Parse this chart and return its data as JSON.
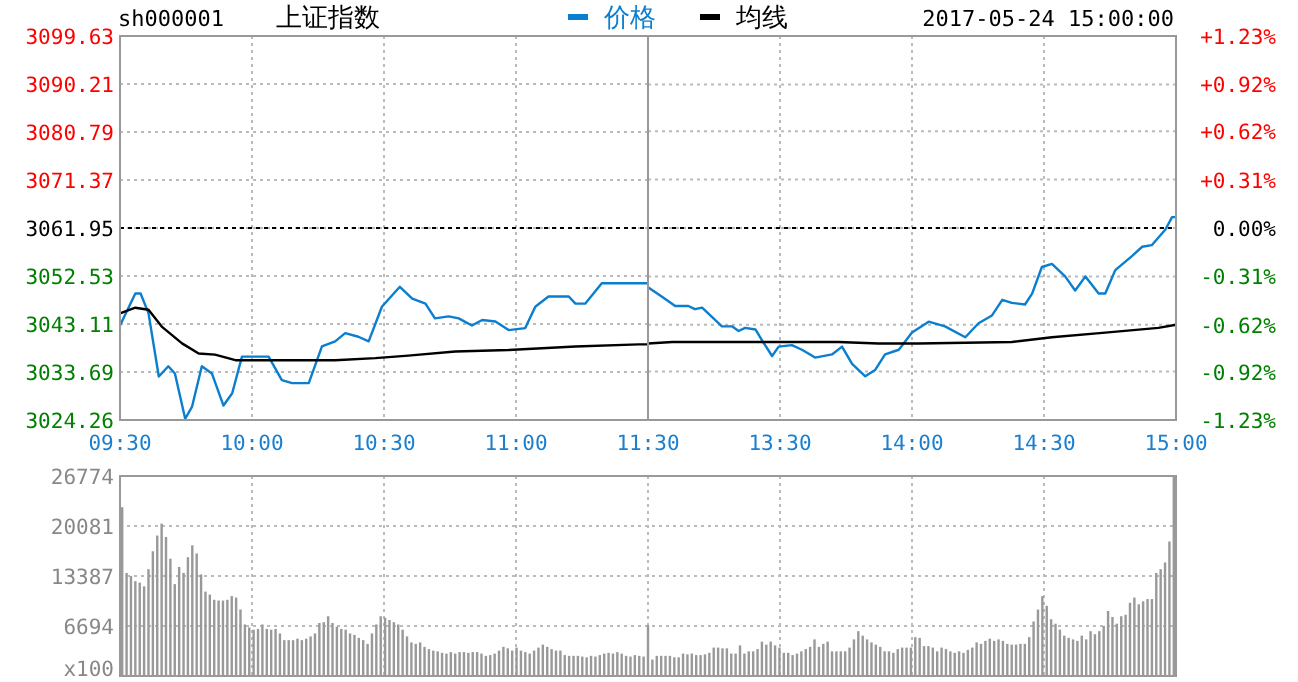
{
  "chart_data": [
    {
      "type": "line",
      "title": "上证指数",
      "annotations": [
        "sh000001"
      ],
      "legend": "top right",
      "grid": true,
      "xlim": [
        9.5,
        11.5
      ],
      "xticks": [
        {
          "value": 9.5,
          "label": "09:30"
        },
        {
          "value": 10,
          "label": "10:00"
        },
        {
          "value": 10.5,
          "label": "10:30"
        },
        {
          "value": 11,
          "label": "11:00"
        },
        {
          "value": 11.5,
          "label": "11:30"
        }
      ],
      "ylim": [
        3024.26,
        3099.63
      ],
      "yticks": [
        3024.26,
        3033.69,
        3043.11,
        3052.53,
        3061.95,
        3071.37,
        3080.79,
        3090.21,
        3099.63
      ],
      "ref_lines": [
        {
          "axis": "y",
          "value": 3061.95,
          "line_style": "dotted",
          "color": "#000000"
        }
      ],
      "series": [
        {
          "name": "价格",
          "color": "#0a7ecf",
          "x": [
            9.5,
            9.558,
            9.578,
            9.608,
            9.647,
            9.683,
            9.708,
            9.747,
            9.773,
            9.81,
            9.848,
            9.892,
            9.925,
            9.962,
            10,
            10.063,
            10.113,
            10.152,
            10.215,
            10.265,
            10.315,
            10.353,
            10.403,
            10.442,
            10.492,
            10.56,
            10.607,
            10.657,
            10.693,
            10.745,
            10.783,
            10.833,
            10.872,
            10.922,
            10.972,
            11.035,
            11.073,
            11.123,
            11.2,
            11.225,
            11.262,
            11.325,
            11.402,
            11.465,
            11.5
          ],
          "values": [
            3042.8,
            3049.1,
            3049.1,
            3045.2,
            3032.8,
            3034.8,
            3033.4,
            3024.5,
            3026.9,
            3034.8,
            3033.4,
            3027.1,
            3029.5,
            3036.7,
            3036.7,
            3036.7,
            3032.1,
            3031.5,
            3031.5,
            3038.7,
            3039.7,
            3041.3,
            3040.6,
            3039.7,
            3046.5,
            3050.4,
            3048.1,
            3047.1,
            3044.2,
            3044.6,
            3044.2,
            3042.8,
            3043.9,
            3043.6,
            3041.9,
            3042.3,
            3046.5,
            3048.5,
            3048.5,
            3047.1,
            3047.1,
            3051.1,
            3051.1,
            3051.1,
            3051.1
          ]
        },
        {
          "name": "均线",
          "color": "#000000",
          "x": [
            9.5,
            9.558,
            9.608,
            9.658,
            9.735,
            9.798,
            9.86,
            9.937,
            10.088,
            10.315,
            10.467,
            10.592,
            10.77,
            10.972,
            11.225,
            11.465,
            11.5
          ],
          "values": [
            3045.2,
            3046.3,
            3045.9,
            3042.6,
            3039.3,
            3037.3,
            3037.1,
            3036.0,
            3036.0,
            3036.0,
            3036.4,
            3036.9,
            3037.7,
            3038.0,
            3038.7,
            3039.1,
            3039.1
          ]
        }
      ]
    },
    {
      "type": "line",
      "annotations": [
        "2017-05-24 15:00:00"
      ],
      "grid": true,
      "xlim": [
        13,
        15
      ],
      "xticks": [
        {
          "value": 13.5,
          "label": "13:30"
        },
        {
          "value": 14,
          "label": "14:00"
        },
        {
          "value": 14.5,
          "label": "14:30"
        },
        {
          "value": 15,
          "label": "15:00"
        }
      ],
      "y2lim": [
        -1.23,
        1.23
      ],
      "y2ticks": [
        {
          "value": -1.23,
          "label": "-1.23%"
        },
        {
          "value": -0.92,
          "label": "-0.92%"
        },
        {
          "value": -0.62,
          "label": "-0.62%"
        },
        {
          "value": -0.31,
          "label": "-0.31%"
        },
        {
          "value": 0,
          "label": "0.00%"
        },
        {
          "value": 0.31,
          "label": "+0.31%"
        },
        {
          "value": 0.62,
          "label": "+0.62%"
        },
        {
          "value": 0.92,
          "label": "+0.92%"
        },
        {
          "value": 1.23,
          "label": "+1.23%"
        }
      ],
      "ref_lines": [
        {
          "axis": "y2",
          "value": 0,
          "line_style": "dotted",
          "color": "#000000"
        }
      ],
      "series": [
        {
          "axis": "y2",
          "color": "#0a7ecf",
          "x": [
            13,
            13.053,
            13.103,
            13.153,
            13.178,
            13.205,
            13.242,
            13.28,
            13.318,
            13.343,
            13.368,
            13.407,
            13.432,
            13.47,
            13.495,
            13.545,
            13.583,
            13.633,
            13.697,
            13.735,
            13.773,
            13.823,
            13.86,
            13.898,
            13.95,
            14,
            14.063,
            14.125,
            14.202,
            14.252,
            14.303,
            14.342,
            14.378,
            14.428,
            14.455,
            14.492,
            14.53,
            14.58,
            14.618,
            14.657,
            14.707,
            14.732,
            14.77,
            14.833,
            14.872,
            14.908,
            14.96,
            14.985,
            15
          ],
          "values": [
            -0.38,
            -0.44,
            -0.5,
            -0.5,
            -0.52,
            -0.51,
            -0.57,
            -0.63,
            -0.63,
            -0.66,
            -0.64,
            -0.65,
            -0.72,
            -0.82,
            -0.76,
            -0.75,
            -0.78,
            -0.83,
            -0.81,
            -0.76,
            -0.87,
            -0.95,
            -0.91,
            -0.81,
            -0.78,
            -0.67,
            -0.6,
            -0.63,
            -0.7,
            -0.61,
            -0.56,
            -0.46,
            -0.48,
            -0.49,
            -0.42,
            -0.25,
            -0.23,
            -0.31,
            -0.4,
            -0.31,
            -0.42,
            -0.42,
            -0.27,
            -0.18,
            -0.12,
            -0.11,
            -0.01,
            0.07,
            0.07
          ]
        },
        {
          "axis": "y2",
          "color": "#000000",
          "x": [
            13,
            13.092,
            13.722,
            13.873,
            14.025,
            14.378,
            14.53,
            14.732,
            14.933,
            15
          ],
          "values": [
            -0.74,
            -0.73,
            -0.73,
            -0.74,
            -0.74,
            -0.73,
            -0.7,
            -0.67,
            -0.64,
            -0.62
          ]
        }
      ]
    },
    {
      "type": "bar",
      "color": "#999999",
      "grid": true,
      "categories": [
        null,
        null,
        null,
        null,
        null,
        null,
        null,
        null,
        null,
        null,
        null,
        null,
        null,
        null,
        null,
        null,
        null,
        null,
        null,
        null,
        null,
        null,
        null,
        null,
        null,
        null,
        null,
        null,
        null,
        null,
        null,
        null,
        null,
        null,
        null,
        null,
        null,
        null,
        null,
        null,
        null,
        null,
        null,
        null,
        null,
        null,
        null,
        null,
        null,
        null,
        null,
        null,
        null,
        null,
        null,
        null,
        null,
        null,
        null,
        null,
        null,
        null,
        null,
        null,
        null,
        null,
        null,
        null,
        null,
        null,
        null,
        null,
        null,
        null,
        null,
        null,
        null,
        null,
        null,
        null,
        null,
        null,
        null,
        null,
        null,
        null,
        null,
        null,
        null,
        null,
        null,
        null,
        null,
        null,
        null,
        null,
        null,
        null,
        null,
        null,
        null,
        null,
        null,
        null,
        null,
        null,
        null,
        null,
        null,
        null,
        null,
        null,
        null,
        null,
        null,
        null,
        null,
        null,
        null,
        null,
        null,
        null,
        null,
        null,
        null,
        null,
        null,
        null,
        null,
        null,
        null,
        null,
        null,
        null,
        null,
        null,
        null,
        null,
        null,
        null,
        null,
        null,
        null,
        null,
        null,
        null,
        null,
        null,
        null,
        null,
        null,
        null,
        null,
        null,
        null,
        null,
        null,
        null,
        null,
        null,
        null,
        null,
        null,
        null,
        null,
        null,
        null,
        null,
        null,
        null,
        null,
        null,
        null,
        null,
        null,
        null,
        null,
        null,
        null,
        null,
        null,
        null,
        null,
        null,
        null,
        null,
        null,
        null,
        null,
        null,
        null,
        null,
        null,
        null,
        null,
        null,
        null,
        null,
        null,
        null,
        null,
        null,
        null,
        null,
        null,
        null,
        null,
        null,
        null,
        null,
        null,
        null,
        null,
        null,
        null,
        null,
        null,
        null,
        null,
        null,
        null,
        null,
        null,
        null,
        null,
        null,
        null,
        null,
        null,
        null,
        null,
        null,
        null,
        null,
        null,
        null,
        null,
        null,
        null,
        null,
        null
      ],
      "ylim": [
        0,
        26774
      ],
      "yticks": [
        {
          "value": 0,
          "label": "x100"
        },
        6694,
        13387,
        20081,
        26774
      ],
      "values": [
        22600,
        13800,
        13400,
        12700,
        12500,
        12000,
        14300,
        16700,
        18800,
        20400,
        18600,
        15700,
        12300,
        14600,
        13800,
        15900,
        17500,
        16400,
        13600,
        11300,
        10900,
        10200,
        10100,
        10100,
        10200,
        10700,
        10500,
        8900,
        6900,
        6500,
        6200,
        6300,
        6900,
        6300,
        6200,
        6300,
        5700,
        4800,
        4800,
        4800,
        5000,
        4800,
        5000,
        5300,
        5700,
        7100,
        7200,
        8000,
        7100,
        6600,
        6300,
        6200,
        5700,
        5500,
        5100,
        4800,
        4300,
        5700,
        6900,
        8000,
        7800,
        7500,
        7200,
        6900,
        6200,
        5300,
        4500,
        4300,
        4500,
        3900,
        3600,
        3400,
        3300,
        3100,
        3000,
        3200,
        3000,
        3200,
        3200,
        3100,
        3200,
        3200,
        3000,
        2700,
        2800,
        3000,
        3400,
        3900,
        3700,
        3400,
        3800,
        3400,
        3200,
        3000,
        3400,
        3800,
        4200,
        3900,
        3600,
        3400,
        3400,
        2800,
        2700,
        2700,
        2700,
        2600,
        2500,
        2700,
        2600,
        2800,
        3000,
        3100,
        3000,
        3200,
        3000,
        2700,
        2600,
        2800,
        2700,
        2600,
        6800,
        2200,
        2700,
        2700,
        2700,
        2700,
        2500,
        2500,
        3000,
        2900,
        3000,
        2800,
        2800,
        2900,
        3100,
        3800,
        3800,
        3700,
        3700,
        3000,
        3000,
        4100,
        3000,
        3300,
        3300,
        3600,
        4600,
        4200,
        4600,
        4100,
        3800,
        3100,
        3100,
        2800,
        3000,
        3300,
        3600,
        3900,
        4900,
        3900,
        4300,
        4600,
        3300,
        3300,
        3300,
        3300,
        3800,
        4900,
        6000,
        5400,
        4900,
        4500,
        4200,
        3900,
        3300,
        3300,
        3100,
        3600,
        3800,
        3800,
        3800,
        5200,
        5100,
        4000,
        4000,
        3800,
        3300,
        3800,
        3600,
        3300,
        3100,
        3300,
        3100,
        3500,
        3800,
        4500,
        4300,
        4700,
        5000,
        4700,
        4900,
        4700,
        4300,
        4200,
        4200,
        4300,
        4300,
        5200,
        7300,
        8900,
        10700,
        9400,
        7600,
        7000,
        6200,
        5400,
        5100,
        4900,
        4700,
        5400,
        4900,
        6000,
        5600,
        6000,
        6700,
        8700,
        7900,
        7000,
        8000,
        8200,
        9800,
        10500,
        9600,
        10000,
        10300,
        10300,
        13800,
        14300,
        15200,
        18000,
        26700
      ]
    }
  ]
}
